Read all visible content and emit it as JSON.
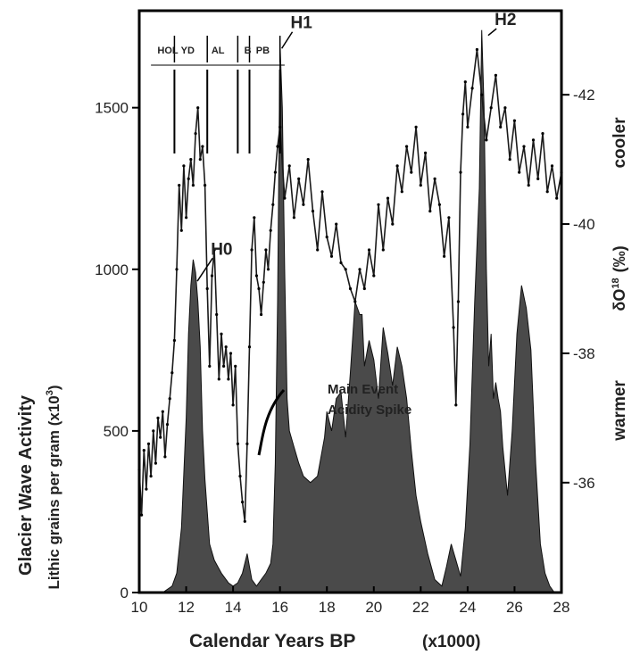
{
  "chart_data": {
    "type": "area",
    "xlabel": "Calendar Years BP",
    "xlabel_unit": "(x1000)",
    "ylabel_title": "Glacier Wave Activity",
    "ylabel": "Lithic grains per gram",
    "ylabel_unit": "(x10",
    "ylabel_unit_exp": "3",
    "ylabel_unit_close": ")",
    "y2label_prefix": "δO",
    "y2label_sup": "18",
    "y2label_unit": "(‰)",
    "y2_top_label": "cooler",
    "y2_bottom_label": "warmer",
    "xlim": [
      10,
      28
    ],
    "x_ticks": [
      10,
      12,
      14,
      16,
      18,
      20,
      22,
      24,
      26,
      28
    ],
    "ylim": [
      0,
      1800
    ],
    "y_ticks": [
      0,
      500,
      1000,
      1500
    ],
    "y2lim": [
      -34.3,
      -43.3
    ],
    "y2_ticks": [
      -36,
      -38,
      -40,
      -42
    ],
    "periods": [
      {
        "label": "HOL",
        "x": 11.5
      },
      {
        "label": "YD",
        "x": 12.9
      },
      {
        "label": "AL",
        "x": 14.2
      },
      {
        "label": "B",
        "x": 14.7
      },
      {
        "label": "PB",
        "x": 16.0
      }
    ],
    "events": [
      {
        "label": "H0",
        "x": 12.4,
        "y": 980
      },
      {
        "label": "H1",
        "x": 16.0,
        "y": 1700
      },
      {
        "label": "H2",
        "x": 24.8,
        "y": 1740
      }
    ],
    "annotation_line1": "Main Event",
    "annotation_line2": "Acidity Spike",
    "series": [
      {
        "kind": "area",
        "axis": "left",
        "x": [
          10.0,
          11.0,
          11.4,
          11.6,
          11.8,
          12.0,
          12.1,
          12.2,
          12.3,
          12.4,
          12.5,
          12.6,
          12.7,
          12.8,
          12.9,
          13.0,
          13.2,
          13.5,
          13.8,
          14.0,
          14.2,
          14.4,
          14.6,
          14.8,
          15.0,
          15.2,
          15.4,
          15.6,
          15.7,
          15.8,
          15.9,
          16.0,
          16.1,
          16.2,
          16.3,
          16.4,
          16.6,
          16.8,
          17.0,
          17.3,
          17.6,
          17.9,
          18.0,
          18.2,
          18.4,
          18.6,
          18.8,
          19.0,
          19.2,
          19.4,
          19.5,
          19.6,
          19.8,
          20.0,
          20.2,
          20.4,
          20.6,
          20.8,
          21.0,
          21.2,
          21.4,
          21.6,
          21.8,
          22.0,
          22.3,
          22.6,
          22.9,
          23.1,
          23.3,
          23.5,
          23.7,
          23.9,
          24.1,
          24.3,
          24.5,
          24.6,
          24.7,
          24.8,
          24.9,
          25.0,
          25.1,
          25.2,
          25.3,
          25.4,
          25.5,
          25.7,
          25.9,
          26.1,
          26.3,
          26.5,
          26.7,
          26.9,
          27.1,
          27.3,
          27.5,
          27.7,
          28.0
        ],
        "values": [
          0,
          0,
          20,
          60,
          200,
          540,
          800,
          950,
          1030,
          990,
          900,
          760,
          500,
          350,
          250,
          150,
          100,
          60,
          30,
          20,
          30,
          60,
          120,
          40,
          20,
          40,
          60,
          90,
          150,
          400,
          900,
          1700,
          1500,
          1000,
          600,
          500,
          450,
          400,
          360,
          340,
          360,
          480,
          560,
          500,
          600,
          620,
          480,
          680,
          900,
          860,
          860,
          700,
          780,
          720,
          600,
          820,
          740,
          640,
          760,
          700,
          600,
          440,
          300,
          220,
          120,
          40,
          20,
          80,
          150,
          100,
          50,
          200,
          460,
          900,
          1250,
          1740,
          1500,
          1000,
          700,
          800,
          600,
          650,
          600,
          560,
          450,
          300,
          500,
          800,
          950,
          880,
          750,
          400,
          150,
          60,
          20,
          0,
          0
        ]
      },
      {
        "kind": "line",
        "axis": "right",
        "x": [
          10.0,
          10.1,
          10.2,
          10.3,
          10.4,
          10.5,
          10.6,
          10.7,
          10.8,
          10.9,
          11.0,
          11.1,
          11.2,
          11.3,
          11.4,
          11.5,
          11.6,
          11.7,
          11.8,
          11.9,
          12.0,
          12.1,
          12.2,
          12.3,
          12.4,
          12.5,
          12.6,
          12.7,
          12.8,
          12.9,
          13.0,
          13.1,
          13.2,
          13.3,
          13.4,
          13.5,
          13.6,
          13.7,
          13.8,
          13.9,
          14.0,
          14.1,
          14.2,
          14.3,
          14.4,
          14.5,
          14.6,
          14.7,
          14.8,
          14.9,
          15.0,
          15.1,
          15.2,
          15.3,
          15.4,
          15.5,
          15.6,
          15.7,
          15.8,
          15.9,
          16.0,
          16.2,
          16.4,
          16.6,
          16.8,
          17.0,
          17.2,
          17.4,
          17.6,
          17.8,
          18.0,
          18.2,
          18.4,
          18.6,
          18.8,
          19.0,
          19.2,
          19.4,
          19.6,
          19.8,
          20.0,
          20.2,
          20.4,
          20.6,
          20.8,
          21.0,
          21.2,
          21.4,
          21.6,
          21.8,
          22.0,
          22.2,
          22.4,
          22.6,
          22.8,
          23.0,
          23.2,
          23.4,
          23.5,
          23.6,
          23.7,
          23.8,
          23.9,
          24.0,
          24.2,
          24.4,
          24.6,
          24.8,
          25.0,
          25.2,
          25.4,
          25.6,
          25.8,
          26.0,
          26.2,
          26.4,
          26.6,
          26.8,
          27.0,
          27.2,
          27.4,
          27.6,
          27.8,
          28.0
        ],
        "values": [
          -36.2,
          -35.5,
          -36.5,
          -35.9,
          -36.6,
          -36.1,
          -36.8,
          -36.3,
          -37.0,
          -36.7,
          -37.1,
          -36.4,
          -36.9,
          -37.3,
          -37.7,
          -38.2,
          -39.3,
          -40.6,
          -39.9,
          -40.9,
          -40.1,
          -40.7,
          -41.0,
          -40.6,
          -41.4,
          -41.8,
          -41.0,
          -41.2,
          -40.6,
          -39.0,
          -37.8,
          -39.2,
          -39.6,
          -38.6,
          -37.6,
          -38.3,
          -37.8,
          -38.1,
          -37.6,
          -38.0,
          -37.2,
          -37.8,
          -36.6,
          -36.1,
          -35.7,
          -35.4,
          -36.6,
          -38.1,
          -39.6,
          -40.1,
          -39.2,
          -39.0,
          -38.6,
          -39.1,
          -39.6,
          -39.3,
          -39.9,
          -40.3,
          -40.8,
          -41.2,
          -41.5,
          -40.4,
          -40.9,
          -40.1,
          -40.7,
          -40.3,
          -41.0,
          -40.2,
          -39.6,
          -40.5,
          -39.8,
          -39.5,
          -40.0,
          -39.4,
          -39.3,
          -39.0,
          -38.8,
          -39.3,
          -39.0,
          -39.6,
          -39.2,
          -40.3,
          -39.6,
          -40.4,
          -40.0,
          -40.9,
          -40.5,
          -41.2,
          -40.8,
          -41.5,
          -40.6,
          -41.1,
          -40.2,
          -40.7,
          -40.3,
          -39.5,
          -40.1,
          -38.4,
          -37.2,
          -38.8,
          -40.8,
          -41.7,
          -42.2,
          -41.5,
          -42.1,
          -42.7,
          -42.0,
          -41.3,
          -41.8,
          -42.3,
          -41.5,
          -41.8,
          -41.0,
          -41.6,
          -40.8,
          -41.2,
          -40.6,
          -41.3,
          -40.7,
          -41.4,
          -40.5,
          -40.9,
          -40.4,
          -40.8
        ]
      }
    ]
  }
}
